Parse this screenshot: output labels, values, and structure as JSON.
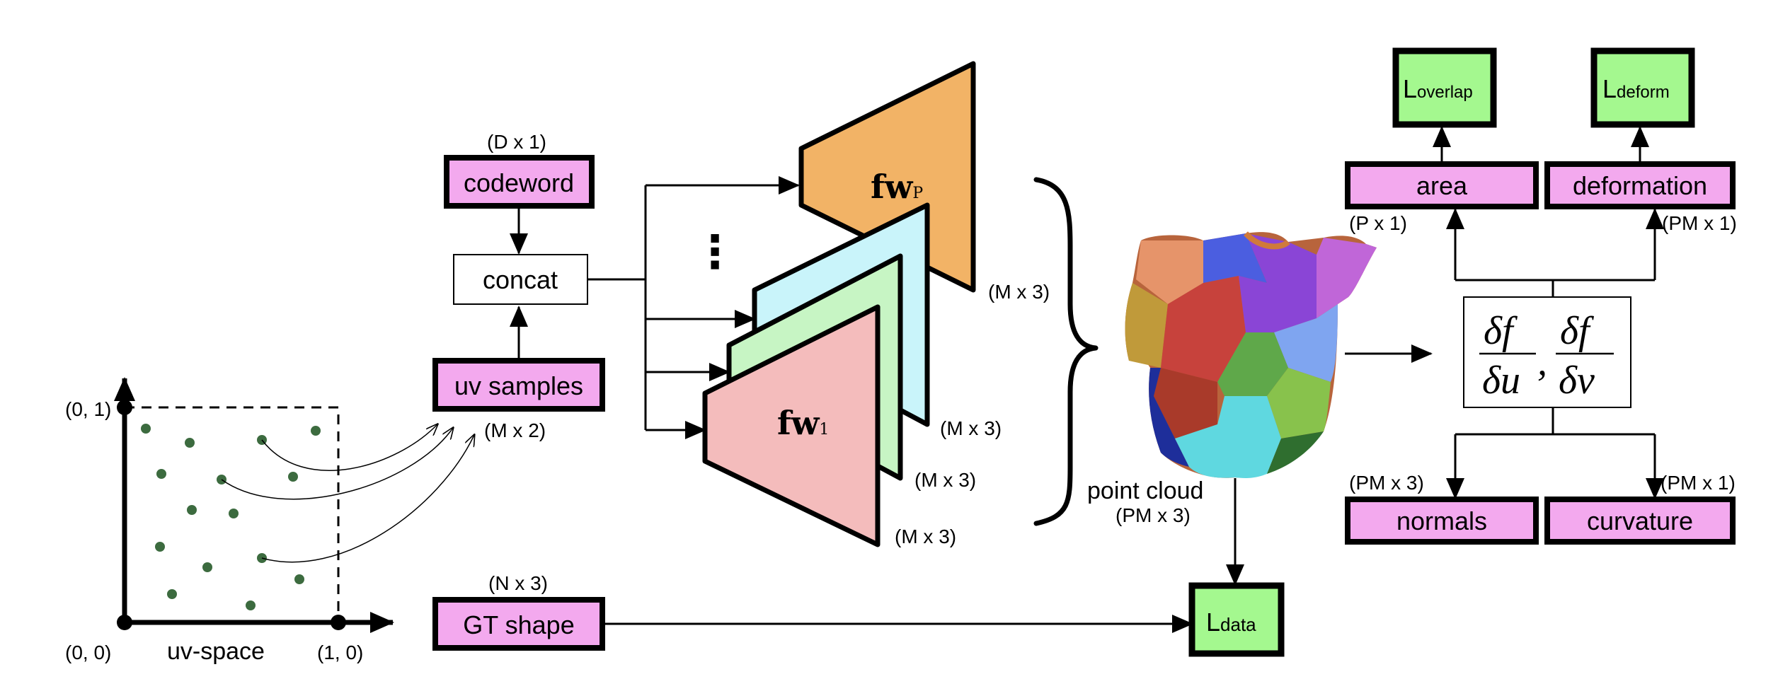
{
  "uv_space": {
    "label": "uv-space",
    "origin": "(0, 0)",
    "corner_x": "(1, 0)",
    "corner_y": "(0, 1)",
    "dot_color": "#3c6b3f"
  },
  "inputs": {
    "codeword": {
      "label": "codeword",
      "dims": "(D x 1)"
    },
    "concat": {
      "label": "concat"
    },
    "uv_samples": {
      "label": "uv samples",
      "dims": "(M x 2)"
    },
    "gt_shape": {
      "label": "GT shape",
      "dims": "(N x 3)"
    }
  },
  "networks": {
    "top": {
      "label_main": "fw",
      "label_sub": "P",
      "out_dims": "(M x 3)",
      "color": "#f2b366"
    },
    "cyan": {
      "out_dims": "(M x 3)",
      "color": "#c9f4fa"
    },
    "green": {
      "out_dims": "(M x 3)",
      "color": "#c7f5c4"
    },
    "bottom": {
      "label_main": "fw",
      "label_sub": "1",
      "out_dims": "(M x 3)",
      "color": "#f4bcbc"
    },
    "ellipsis": "⋮"
  },
  "point_cloud": {
    "label": "point cloud",
    "dims": "(PM x 3)"
  },
  "derivatives": {
    "num": "δf",
    "den_u": "δu",
    "den_v": "δv",
    "sep": ","
  },
  "outputs": {
    "area": {
      "label": "area",
      "dims": "(P x 1)"
    },
    "deformation": {
      "label": "deformation",
      "dims": "(PM x 1)"
    },
    "normals": {
      "label": "normals",
      "dims": "(PM x 3)"
    },
    "curvature": {
      "label": "curvature",
      "dims": "(PM x 1)"
    }
  },
  "losses": {
    "overlap": {
      "main": "L",
      "sub": "overlap"
    },
    "deform": {
      "main": "L",
      "sub": "deform"
    },
    "data": {
      "main": "L",
      "sub": "data"
    }
  },
  "colors": {
    "magenta_box": "#f3a9ee",
    "loss_box": "#a4f88f"
  }
}
